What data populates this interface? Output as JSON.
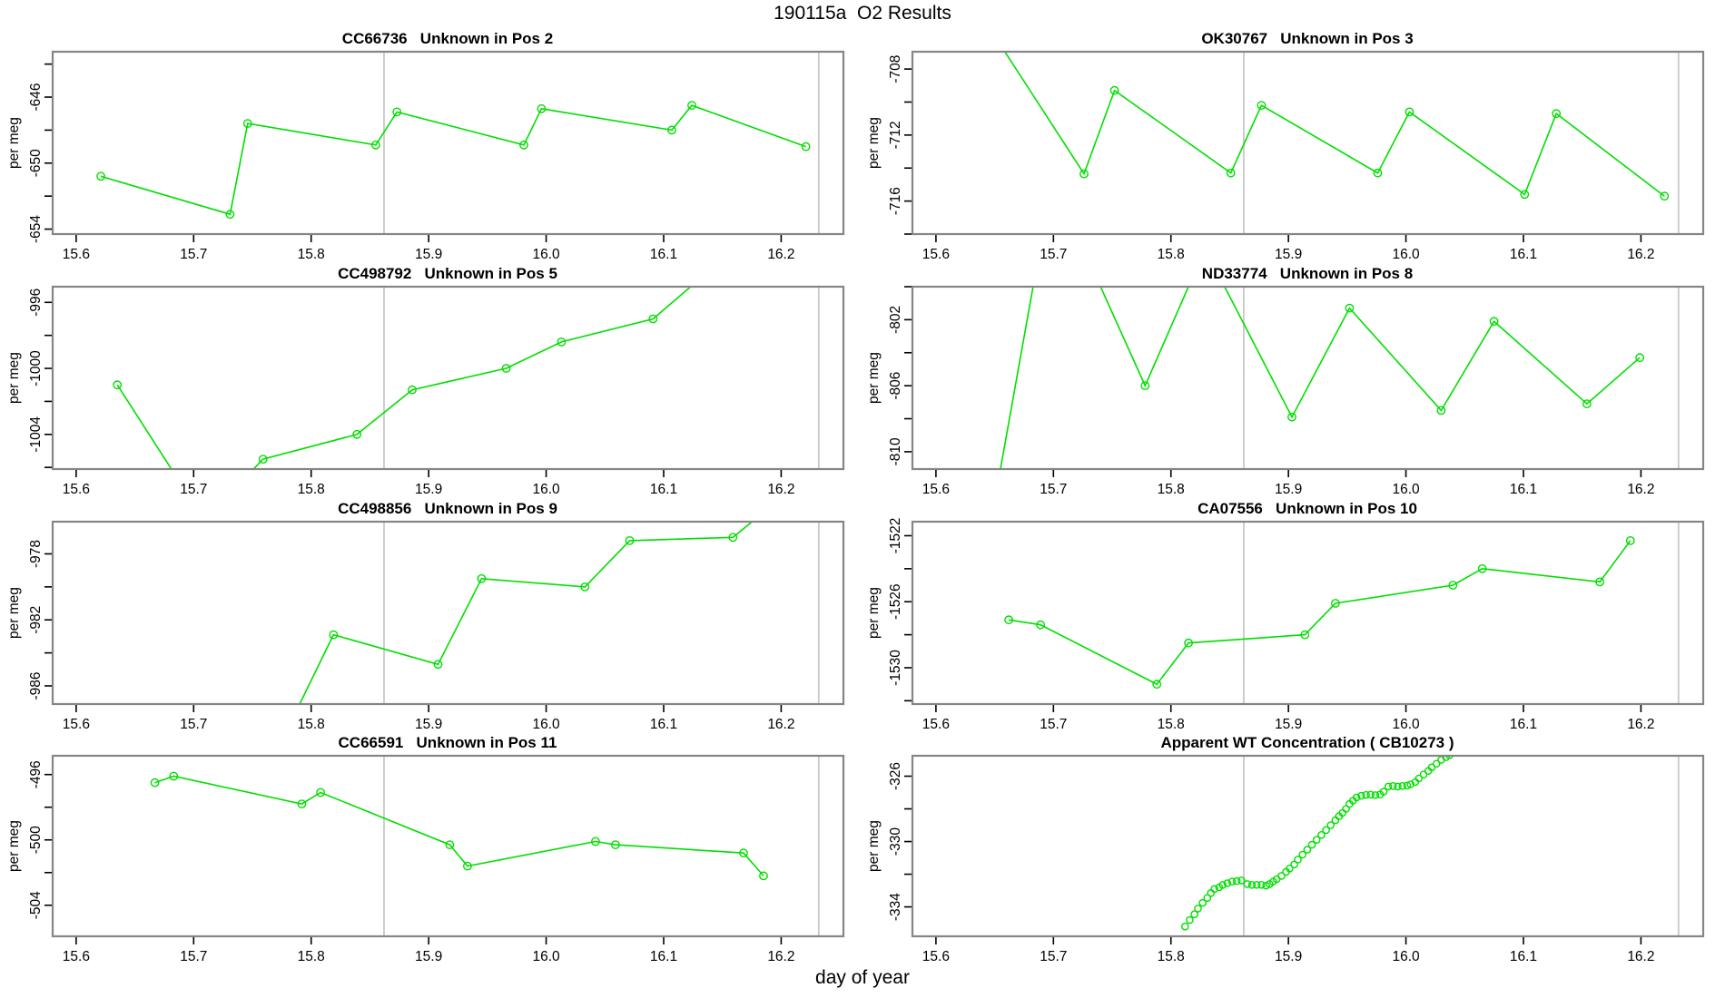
{
  "title": "190115a  O2 Results",
  "xlabel": "day of year",
  "colors": {
    "series": "#00DF00",
    "vline": "#C9C9C9",
    "box": "#858585",
    "tick": "#000000"
  },
  "axis": {
    "xticks": [
      15.6,
      15.7,
      15.8,
      15.9,
      16.0,
      16.1,
      16.2
    ],
    "xtick_labels": [
      "15.6",
      "15.7",
      "15.8",
      "15.9",
      "16.0",
      "16.1",
      "16.2"
    ],
    "vlines": [
      15.862,
      16.232
    ]
  },
  "chart_data": [
    {
      "title": "CC66736   Unknown in Pos 2",
      "ylabel": "per meg",
      "type": "line",
      "x": [
        15.621,
        15.731,
        15.746,
        15.855,
        15.873,
        15.981,
        15.996,
        16.107,
        16.124,
        16.221
      ],
      "y": [
        -650.8,
        -653.1,
        -647.6,
        -648.9,
        -646.9,
        -648.9,
        -646.7,
        -648.0,
        -646.5,
        -649.0
      ],
      "ylim": [
        -654.3,
        -643.25
      ],
      "ytick_step": 2,
      "ytick_labels": [
        -646,
        -650,
        -654
      ]
    },
    {
      "title": "OK30767   Unknown in Pos 3",
      "ylabel": "per meg",
      "type": "line",
      "x": [
        15.65,
        15.726,
        15.752,
        15.851,
        15.877,
        15.976,
        16.003,
        16.101,
        16.128,
        16.22
      ],
      "y": [
        -706.0,
        -714.35,
        -709.3,
        -714.3,
        -710.2,
        -714.3,
        -710.6,
        -715.6,
        -710.7,
        -715.7
      ],
      "ylim": [
        -718.0,
        -706.95
      ],
      "ytick_step": 2,
      "ytick_labels": [
        -708,
        -712,
        -716
      ]
    },
    {
      "title": "CC498792   Unknown in Pos 5",
      "ylabel": "per meg",
      "type": "line",
      "x": [
        15.635,
        15.709,
        15.759,
        15.839,
        15.886,
        15.966,
        16.013,
        16.091,
        16.15
      ],
      "y": [
        -1001.0,
        -1009.2,
        -1005.5,
        -1004.0,
        -1001.3,
        -1000.0,
        -998.4,
        -997.0,
        -993.4
      ],
      "ylim": [
        -1006.1,
        -995.05
      ],
      "ytick_step": 2,
      "ytick_labels": [
        -996,
        -1000,
        -1004
      ]
    },
    {
      "title": "ND33774   Unknown in Pos 8",
      "ylabel": "per meg",
      "type": "line",
      "x": [
        15.65,
        15.699,
        15.778,
        15.829,
        15.903,
        15.952,
        16.03,
        16.075,
        16.154,
        16.199
      ],
      "y": [
        -813.0,
        -793.5,
        -806.0,
        -797.7,
        -807.9,
        -801.3,
        -807.5,
        -802.1,
        -807.1,
        -804.3
      ],
      "ylim": [
        -811.05,
        -800.0
      ],
      "ytick_step": 2,
      "ytick_labels": [
        -802,
        -806,
        -810
      ]
    },
    {
      "title": "CC498856   Unknown in Pos 9",
      "ylabel": "per meg",
      "type": "line",
      "x": [
        15.78,
        15.819,
        15.908,
        15.945,
        16.033,
        16.071,
        16.159,
        16.195
      ],
      "y": [
        -988.6,
        -982.9,
        -984.7,
        -979.5,
        -980.0,
        -977.2,
        -977.0,
        -974.9
      ],
      "ylim": [
        -987.1,
        -976.05
      ],
      "ytick_step": 2,
      "ytick_labels": [
        -978,
        -982,
        -986
      ]
    },
    {
      "title": "CA07556   Unknown in Pos 10",
      "ylabel": "per meg",
      "type": "line",
      "x": [
        15.662,
        15.689,
        15.788,
        15.815,
        15.914,
        15.94,
        16.04,
        16.065,
        16.165,
        16.191
      ],
      "y": [
        -1527.1,
        -1527.4,
        -1531.0,
        -1528.5,
        -1528.0,
        -1526.1,
        -1525.0,
        -1524.0,
        -1524.8,
        -1522.3
      ],
      "ylim": [
        -1532.2,
        -1521.15
      ],
      "ytick_step": 2,
      "ytick_labels": [
        -1522,
        -1526,
        -1530
      ]
    },
    {
      "title": "CC66591   Unknown in Pos 11",
      "ylabel": "per meg",
      "type": "line",
      "x": [
        15.667,
        15.683,
        15.792,
        15.808,
        15.918,
        15.933,
        16.042,
        16.059,
        16.168,
        16.185
      ],
      "y": [
        -496.5,
        -496.1,
        -497.8,
        -497.1,
        -500.3,
        -501.6,
        -500.1,
        -500.3,
        -500.8,
        -502.2
      ],
      "ylim": [
        -505.9,
        -494.85
      ],
      "ytick_step": 2,
      "ytick_labels": [
        -496,
        -500,
        -504
      ]
    },
    {
      "title": "Apparent WT Concentration ( CB10273 )",
      "ylabel": "per meg",
      "type": "scatter",
      "x": [
        15.812,
        15.816,
        15.82,
        15.823,
        15.827,
        15.831,
        15.834,
        15.837,
        15.841,
        15.844,
        15.848,
        15.852,
        15.856,
        15.86,
        15.865,
        15.869,
        15.873,
        15.877,
        15.881,
        15.884,
        15.887,
        15.89,
        15.894,
        15.898,
        15.901,
        15.905,
        15.908,
        15.912,
        15.916,
        15.92,
        15.924,
        15.928,
        15.932,
        15.936,
        15.94,
        15.943,
        15.946,
        15.949,
        15.952,
        15.955,
        15.958,
        15.962,
        15.966,
        15.97,
        15.974,
        15.978,
        15.981,
        15.985,
        15.989,
        15.993,
        15.997,
        16.001,
        16.004,
        16.008,
        16.011,
        16.015,
        16.019,
        16.022,
        16.026,
        16.03,
        16.034,
        16.037
      ],
      "y": [
        -335.2,
        -334.8,
        -334.45,
        -334.1,
        -333.75,
        -333.45,
        -333.15,
        -332.9,
        -332.8,
        -332.65,
        -332.55,
        -332.45,
        -332.42,
        -332.38,
        -332.6,
        -332.65,
        -332.65,
        -332.65,
        -332.7,
        -332.6,
        -332.45,
        -332.3,
        -332.1,
        -331.85,
        -331.65,
        -331.4,
        -331.1,
        -330.8,
        -330.5,
        -330.2,
        -329.9,
        -329.6,
        -329.3,
        -329.0,
        -328.7,
        -328.45,
        -328.25,
        -328.0,
        -327.7,
        -327.5,
        -327.3,
        -327.2,
        -327.15,
        -327.13,
        -327.16,
        -327.12,
        -326.95,
        -326.63,
        -326.6,
        -326.63,
        -326.6,
        -326.57,
        -326.5,
        -326.36,
        -326.14,
        -325.9,
        -325.68,
        -325.46,
        -325.24,
        -325.0,
        -324.84,
        -324.72
      ],
      "ylim": [
        -335.8,
        -324.75
      ],
      "ytick_step": 2,
      "ytick_labels": [
        -326,
        -330,
        -334
      ]
    }
  ]
}
